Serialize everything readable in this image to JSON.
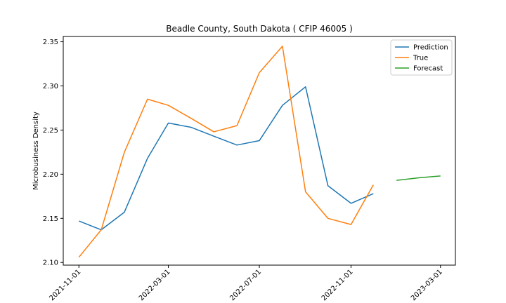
{
  "chart_data": {
    "type": "line",
    "title": "Beadle County, South Dakota ( CFIP 46005 )",
    "xlabel": "",
    "ylabel": "Microbusiness Density",
    "x_ticks": [
      "2021-11-01",
      "2022-03-01",
      "2022-07-01",
      "2022-11-01",
      "2023-03-01"
    ],
    "y_ticks": [
      "2.10",
      "2.15",
      "2.20",
      "2.25",
      "2.30",
      "2.35"
    ],
    "xlim": [
      "2021-10-11",
      "2023-03-21"
    ],
    "ylim": [
      2.097,
      2.356
    ],
    "legend_position": "upper right",
    "series": [
      {
        "name": "Prediction",
        "color": "#1f77b4",
        "x": [
          "2021-11-01",
          "2021-12-01",
          "2022-01-01",
          "2022-02-01",
          "2022-03-01",
          "2022-04-01",
          "2022-05-01",
          "2022-06-01",
          "2022-07-01",
          "2022-08-01",
          "2022-09-01",
          "2022-10-01",
          "2022-11-01",
          "2022-12-01"
        ],
        "values": [
          2.147,
          2.137,
          2.157,
          2.218,
          2.258,
          2.253,
          2.243,
          2.233,
          2.238,
          2.278,
          2.299,
          2.187,
          2.167,
          2.178
        ]
      },
      {
        "name": "True",
        "color": "#ff7f0e",
        "x": [
          "2021-11-01",
          "2021-12-01",
          "2022-01-01",
          "2022-02-01",
          "2022-03-01",
          "2022-04-01",
          "2022-05-01",
          "2022-06-01",
          "2022-07-01",
          "2022-08-01",
          "2022-09-01",
          "2022-10-01",
          "2022-11-01",
          "2022-12-01"
        ],
        "values": [
          2.106,
          2.137,
          2.225,
          2.285,
          2.278,
          2.263,
          2.248,
          2.255,
          2.315,
          2.345,
          2.18,
          2.15,
          2.143,
          2.188
        ]
      },
      {
        "name": "Forecast",
        "color": "#2ca02c",
        "x": [
          "2023-01-01",
          "2023-02-01",
          "2023-03-01"
        ],
        "values": [
          2.193,
          2.196,
          2.198
        ]
      }
    ]
  }
}
